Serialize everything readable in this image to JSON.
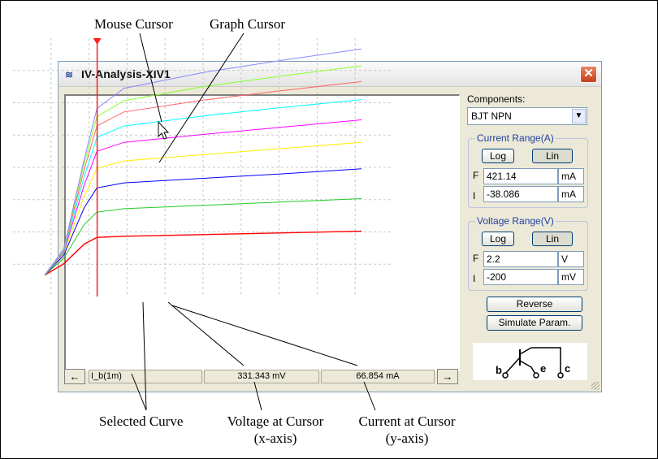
{
  "window": {
    "title": "IV-Analysis-XIV1",
    "close_glyph": "✕",
    "icon": "iv-analyzer-icon"
  },
  "callouts": {
    "mouse_cursor": "Mouse Cursor",
    "graph_cursor": "Graph Cursor",
    "selected_curve": "Selected Curve",
    "voltage_line1": "Voltage at Cursor",
    "voltage_line2": "(x-axis)",
    "current_line1": "Current at Cursor",
    "current_line2": "(y-axis)"
  },
  "status_bar": {
    "left_arrow": "←",
    "right_arrow": "→",
    "curve_name": "I_b(1m)",
    "voltage": "331.343 mV",
    "current": "66.854 mA"
  },
  "panel": {
    "components_label": "Components:",
    "component_value": "BJT NPN",
    "combo_arrow": "▼",
    "current_range": {
      "title": "Current Range(A)",
      "log": "Log",
      "lin": "Lin",
      "f_label": "F",
      "f_value": "421.14",
      "f_unit": "mA",
      "i_label": "I",
      "i_value": "-38.086",
      "i_unit": "mA"
    },
    "voltage_range": {
      "title": "Voltage Range(V)",
      "log": "Log",
      "lin": "Lin",
      "f_label": "F",
      "f_value": "2.2",
      "f_unit": "V",
      "i_label": "I",
      "i_value": "-200",
      "i_unit": "mV"
    },
    "reverse_button": "Reverse",
    "simulate_button": "Simulate Param.",
    "schematic": {
      "b": "b",
      "e": "e",
      "c": "c"
    }
  },
  "colors": {
    "cursor": "#ff2020",
    "curves": [
      "#ff0000",
      "#22cc22",
      "#0000ff",
      "#ffee00",
      "#ff00ff",
      "#00ffff",
      "#ff6666",
      "#88ff33",
      "#8888ff"
    ]
  },
  "chart_data": {
    "type": "line",
    "xlim": [
      -0.2,
      2.2
    ],
    "ylim": [
      -38.086,
      421.14
    ],
    "grid": true,
    "cursor_x": 0.331343,
    "cursor_y": 66.854,
    "selected_series": 0,
    "series": [
      {
        "x": [
          0.0,
          0.12,
          0.25,
          0.33,
          0.5,
          1.0,
          1.5,
          2.0
        ],
        "values": [
          0,
          20,
          55,
          67,
          69,
          72,
          75,
          78
        ]
      },
      {
        "x": [
          0.0,
          0.12,
          0.25,
          0.33,
          0.5,
          1.0,
          1.5,
          2.0
        ],
        "values": [
          0,
          30,
          90,
          112,
          118,
          124,
          130,
          136
        ]
      },
      {
        "x": [
          0.0,
          0.12,
          0.25,
          0.33,
          0.5,
          1.0,
          1.5,
          2.0
        ],
        "values": [
          0,
          35,
          120,
          155,
          164,
          172,
          180,
          189
        ]
      },
      {
        "x": [
          0.0,
          0.12,
          0.25,
          0.33,
          0.5,
          1.0,
          1.5,
          2.0
        ],
        "values": [
          0,
          38,
          140,
          190,
          203,
          214,
          225,
          236
        ]
      },
      {
        "x": [
          0.0,
          0.12,
          0.25,
          0.33,
          0.5,
          1.0,
          1.5,
          2.0
        ],
        "values": [
          0,
          40,
          160,
          220,
          236,
          250,
          263,
          276
        ]
      },
      {
        "x": [
          0.0,
          0.12,
          0.25,
          0.33,
          0.5,
          1.0,
          1.5,
          2.0
        ],
        "values": [
          0,
          42,
          175,
          245,
          265,
          283,
          298,
          312
        ]
      },
      {
        "x": [
          0.0,
          0.12,
          0.25,
          0.33,
          0.5,
          1.0,
          1.5,
          2.0
        ],
        "values": [
          0,
          44,
          188,
          265,
          290,
          311,
          328,
          344
        ]
      },
      {
        "x": [
          0.0,
          0.12,
          0.25,
          0.33,
          0.5,
          1.0,
          1.5,
          2.0
        ],
        "values": [
          0,
          45,
          198,
          282,
          310,
          335,
          354,
          372
        ]
      },
      {
        "x": [
          0.0,
          0.12,
          0.25,
          0.33,
          0.5,
          1.0,
          1.5,
          2.0
        ],
        "values": [
          0,
          46,
          206,
          296,
          332,
          360,
          382,
          402
        ]
      }
    ]
  }
}
